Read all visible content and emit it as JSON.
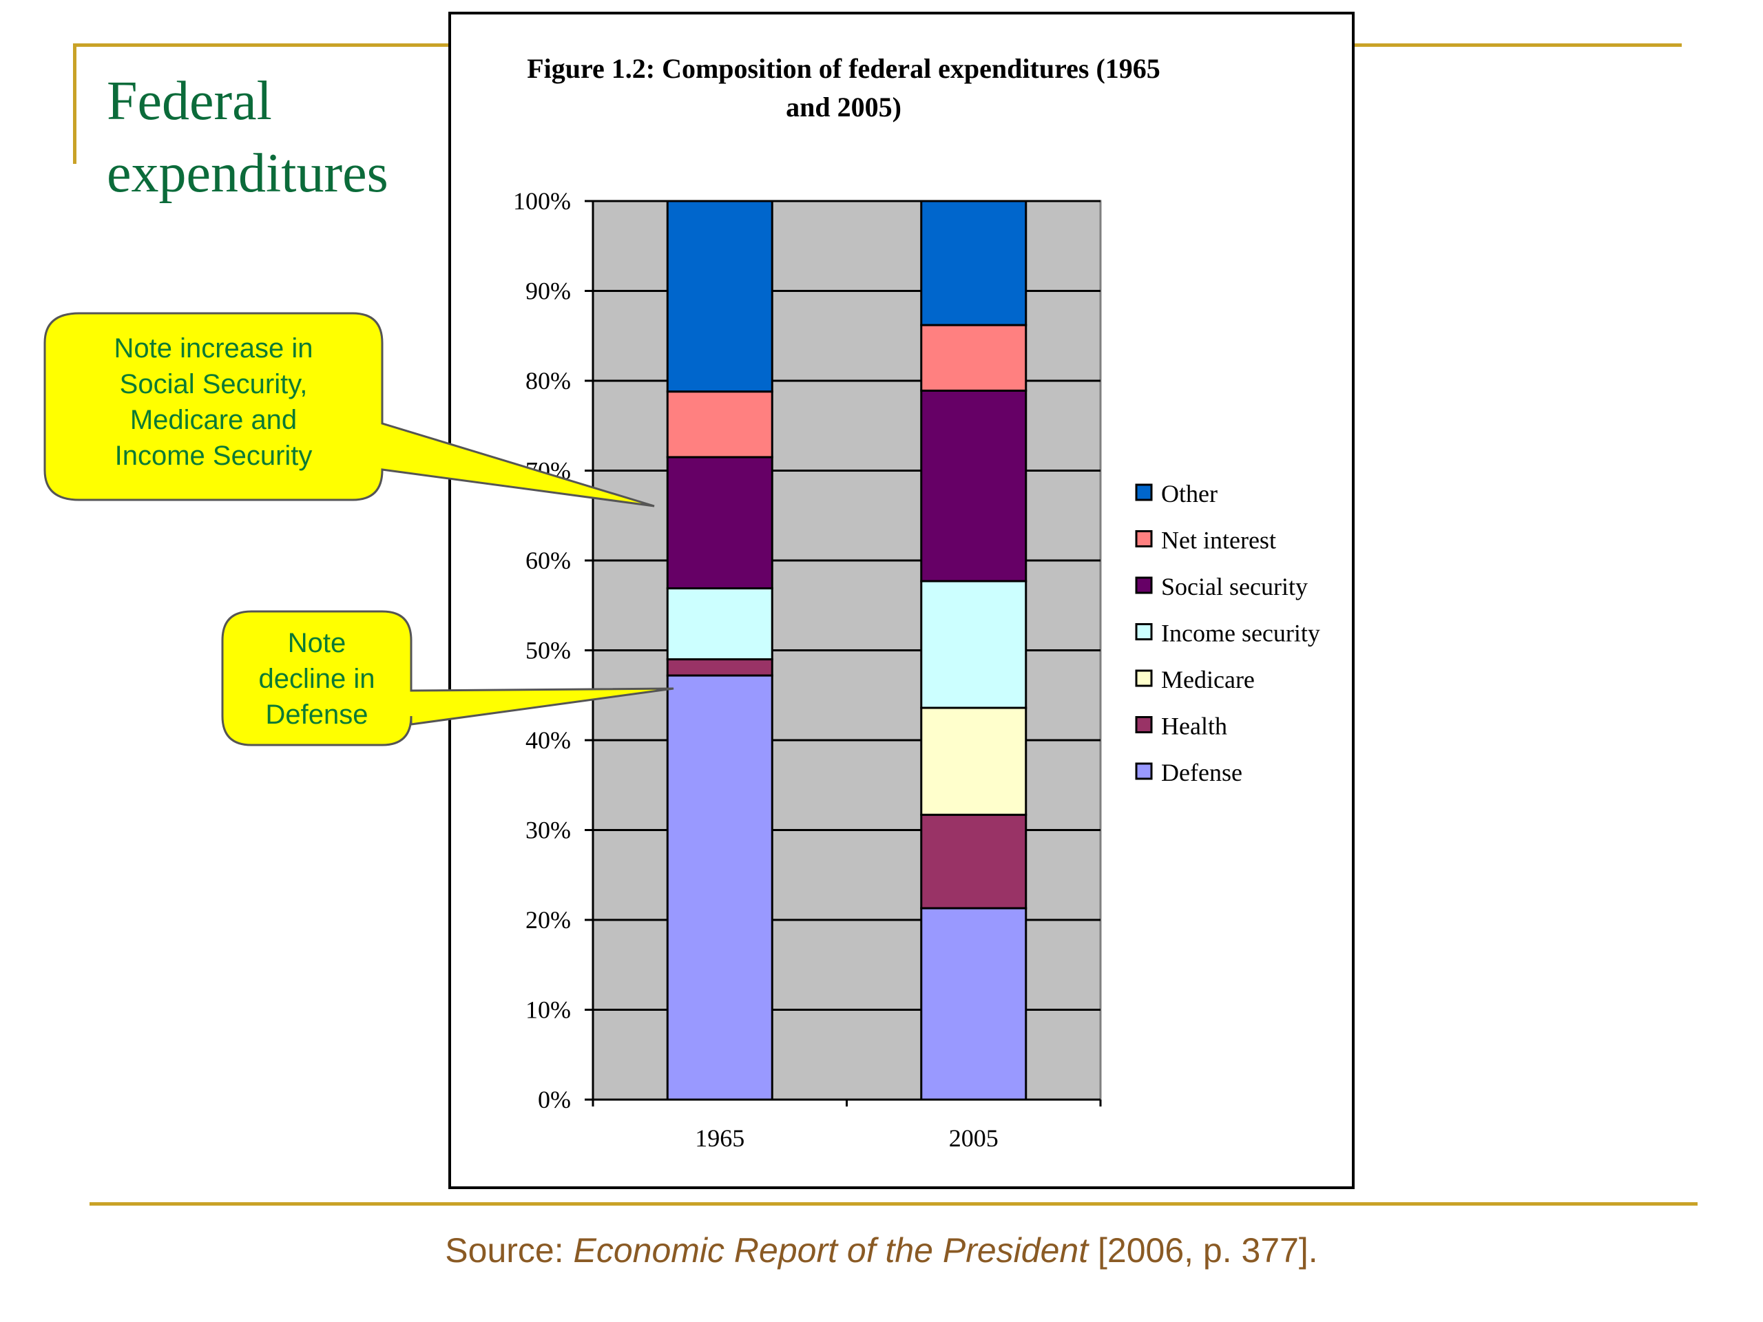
{
  "slide": {
    "title_line1": "Federal",
    "title_line2": "expenditures",
    "source_prefix": "Source: ",
    "source_italic": "Economic Report of the President",
    "source_suffix": " [2006, p. 377]."
  },
  "callouts": [
    {
      "lines": [
        "Note increase in",
        "Social Security,",
        "Medicare and",
        "Income Security"
      ]
    },
    {
      "lines": [
        "Note",
        "decline in",
        "Defense"
      ]
    }
  ],
  "chart_data": {
    "type": "bar",
    "stacked": true,
    "title_line1": "Figure 1.2: Composition of federal expenditures (1965",
    "title_line2": "and 2005)",
    "categories": [
      "1965",
      "2005"
    ],
    "ylim": [
      0,
      100
    ],
    "yticks": [
      "0%",
      "10%",
      "20%",
      "30%",
      "40%",
      "50%",
      "60%",
      "70%",
      "80%",
      "90%",
      "100%"
    ],
    "grid": true,
    "legend_position": "right",
    "series": [
      {
        "name": "Defense",
        "color": "#9999ff",
        "values": [
          47.2,
          21.3
        ]
      },
      {
        "name": "Health",
        "color": "#993366",
        "values": [
          1.8,
          10.4
        ]
      },
      {
        "name": "Medicare",
        "color": "#ffffcc",
        "values": [
          0,
          11.9
        ]
      },
      {
        "name": "Income security",
        "color": "#ccffff",
        "values": [
          7.9,
          14.1
        ]
      },
      {
        "name": "Social security",
        "color": "#660066",
        "values": [
          14.6,
          21.2
        ]
      },
      {
        "name": "Net interest",
        "color": "#ff8080",
        "values": [
          7.3,
          7.3
        ]
      },
      {
        "name": "Other",
        "color": "#0066cc",
        "values": [
          21.2,
          13.8
        ]
      }
    ]
  }
}
